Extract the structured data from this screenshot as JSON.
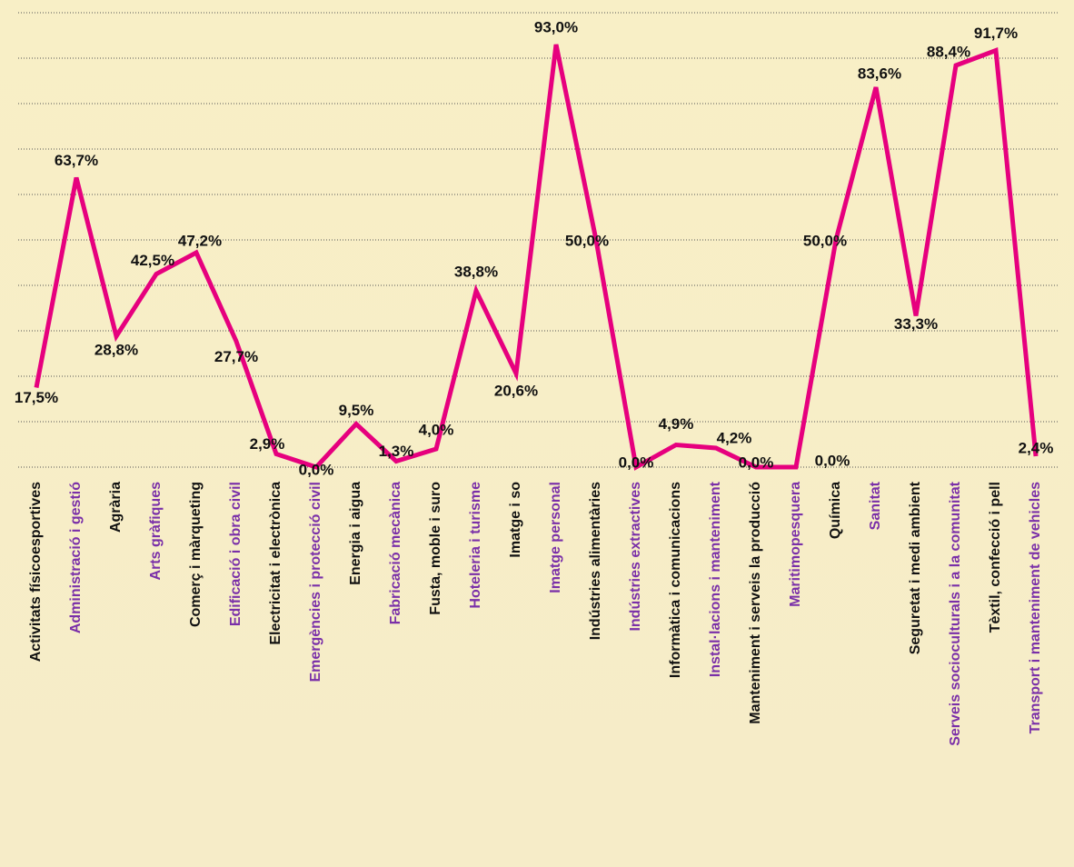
{
  "chart_data": {
    "type": "line",
    "categories": [
      "Activitats físicoesportives",
      "Administració i gestió",
      "Agrària",
      "Arts gràfiques",
      "Comerç i màrqueting",
      "Edificació i obra civil",
      "Electricitat i electrònica",
      "Emergències i protecció civil",
      "Energia i aigua",
      "Fabricació mecànica",
      "Fusta, moble i suro",
      "Hoteleria i turisme",
      "Imatge i so",
      "Imatge personal",
      "Indústries alimentàries",
      "Indústries extractives",
      "Informàtica i comunicacions",
      "Instal·lacions i manteniment",
      "Manteniment i serveis  la producció",
      "Maritimopesquera",
      "Química",
      "Sanitat",
      "Seguretat i medi ambient",
      "Serveis socioculturals i a la comunitat",
      "Tèxtil, confecció i pell",
      "Transport i manteniment de vehicles"
    ],
    "values": [
      17.5,
      63.7,
      28.8,
      42.5,
      47.2,
      27.7,
      2.9,
      0.0,
      9.5,
      1.3,
      4.0,
      38.8,
      20.6,
      93.0,
      50.0,
      0.0,
      4.9,
      4.2,
      0.0,
      0.0,
      50.0,
      83.6,
      33.3,
      88.4,
      91.7,
      2.4
    ],
    "value_labels": [
      "17,5%",
      "63,7%",
      "28,8%",
      "42,5%",
      "47,2%",
      "27,7%",
      "2,9%",
      "0,0%",
      "9,5%",
      "1,3%",
      "4,0%",
      "38,8%",
      "20,6%",
      "93,0%",
      "50,0%",
      "0,0%",
      "4,9%",
      "4,2%",
      "0,0%",
      "0,0%",
      "50,0%",
      "83,6%",
      "33,3%",
      "88,4%",
      "91,7%",
      "2,4%"
    ],
    "color": "#e6007e",
    "label_colors": [
      "#111111",
      "#7a2fa8"
    ],
    "ylim": [
      0,
      100
    ],
    "yticks": [
      0,
      10,
      20,
      30,
      40,
      50,
      60,
      70,
      80,
      90,
      100
    ],
    "grid": true
  }
}
